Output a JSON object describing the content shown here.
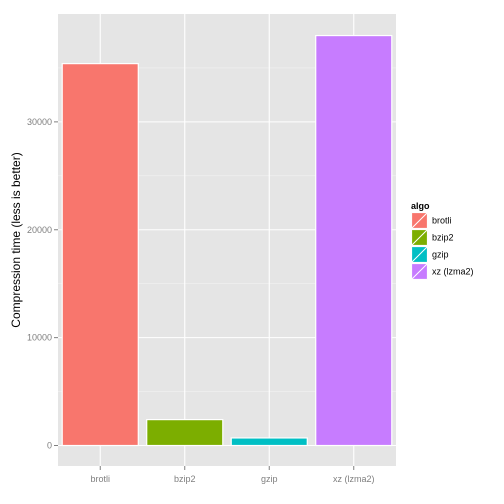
{
  "chart_data": {
    "type": "bar",
    "categories": [
      "brotli",
      "bzip2",
      "gzip",
      "xz (lzma2)"
    ],
    "values": [
      35400,
      2400,
      700,
      38000
    ],
    "title": "",
    "xlabel": "",
    "ylabel": "Compression time (less is better)",
    "ylim": [
      -1900,
      40000
    ],
    "yticks": [
      0,
      10000,
      20000,
      30000
    ],
    "grid": true,
    "legend": {
      "title": "algo",
      "placement": "right",
      "entries": [
        "brotli",
        "bzip2",
        "gzip",
        "xz (lzma2)"
      ]
    },
    "colors": [
      "#F8766D",
      "#7CAE00",
      "#00BFC4",
      "#C77CFF"
    ],
    "panel_background": "#E5E5E5",
    "grid_color": "#FFFFFF"
  }
}
